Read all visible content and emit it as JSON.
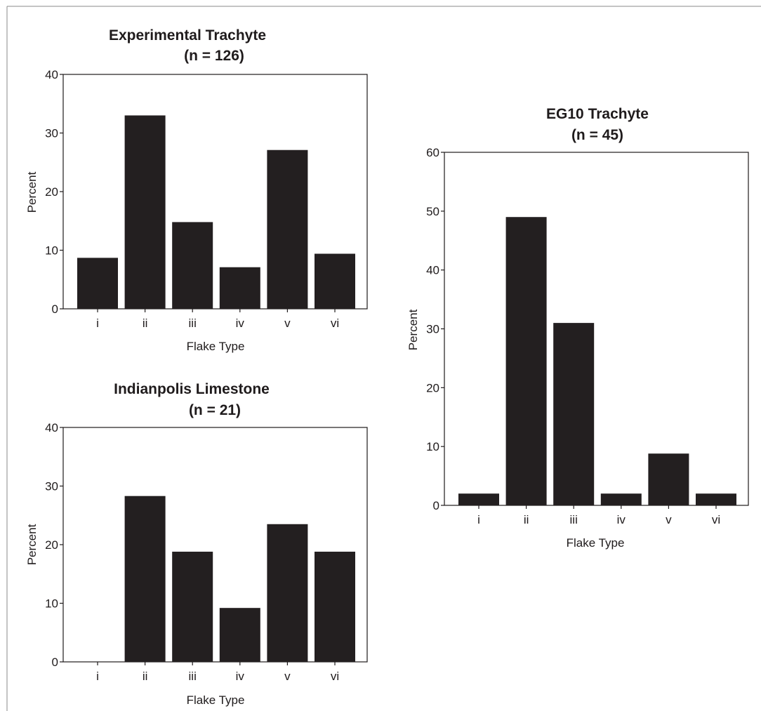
{
  "chart_data": [
    {
      "type": "bar",
      "title": "Experimental Trachyte",
      "subtitle": "(n = 126)",
      "xlabel": "Flake Type",
      "ylabel": "Percent",
      "categories": [
        "i",
        "ii",
        "iii",
        "iv",
        "v",
        "vi"
      ],
      "values": [
        8.7,
        33.0,
        14.8,
        7.1,
        27.1,
        9.4
      ],
      "ylim": [
        0,
        40
      ],
      "yticks": [
        0,
        10,
        20,
        30,
        40
      ],
      "bar_color": "#231f20",
      "grid": false
    },
    {
      "type": "bar",
      "title": "Indianpolis Limestone",
      "subtitle": "(n = 21)",
      "xlabel": "Flake Type",
      "ylabel": "Percent",
      "categories": [
        "i",
        "ii",
        "iii",
        "iv",
        "v",
        "vi"
      ],
      "values": [
        0,
        28.3,
        18.8,
        9.2,
        23.5,
        18.8
      ],
      "ylim": [
        0,
        40
      ],
      "yticks": [
        0,
        10,
        20,
        30,
        40
      ],
      "bar_color": "#231f20",
      "grid": false
    },
    {
      "type": "bar",
      "title": "EG10 Trachyte",
      "subtitle": "(n = 45)",
      "xlabel": "Flake Type",
      "ylabel": "Percent",
      "categories": [
        "i",
        "ii",
        "iii",
        "iv",
        "v",
        "vi"
      ],
      "values": [
        2.0,
        49.0,
        31.0,
        2.0,
        8.8,
        2.0
      ],
      "ylim": [
        0,
        60
      ],
      "yticks": [
        0,
        10,
        20,
        30,
        40,
        50,
        60
      ],
      "bar_color": "#231f20",
      "grid": false
    }
  ]
}
